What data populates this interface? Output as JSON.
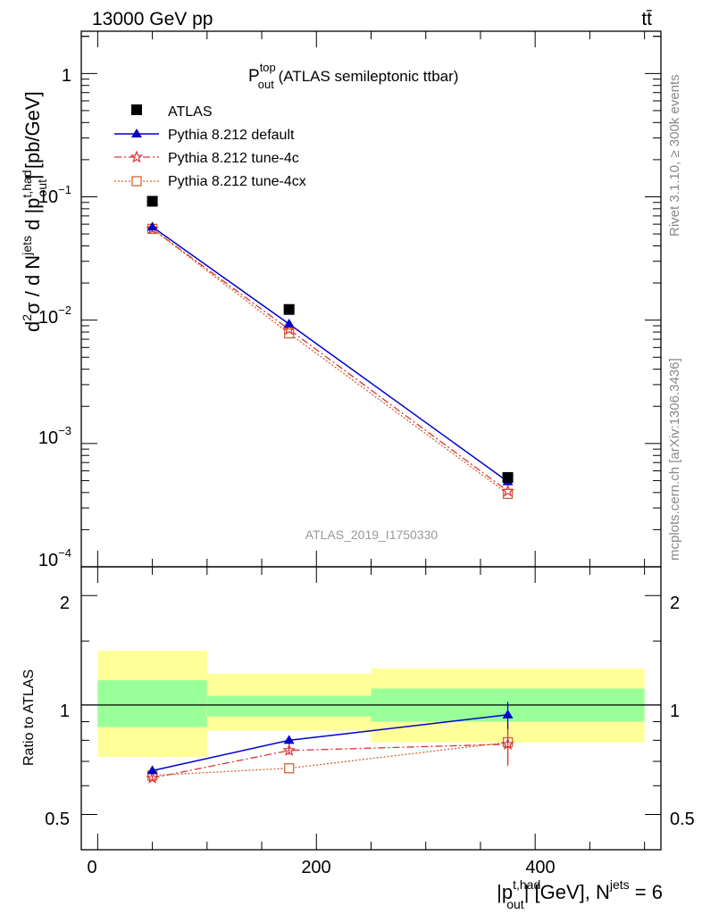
{
  "header": {
    "energy_label": "13000 GeV pp",
    "process_label": "tt̄"
  },
  "title": {
    "main": "P",
    "sup": "top",
    "sub": "out",
    "suffix": " (ATLAS semileptonic ttbar)"
  },
  "watermark": "ATLAS_2019_I1750330",
  "side_labels": {
    "rivet": "Rivet 3.1.10, ≥ 300k events",
    "mcplots": "mcplots.cern.ch [arXiv:1306.3436]"
  },
  "legend": [
    {
      "label": "ATLAS",
      "color": "#000000",
      "marker": "square-filled"
    },
    {
      "label": "Pythia 8.212 default",
      "color": "#0000cc",
      "marker": "triangle"
    },
    {
      "label": "Pythia 8.212 tune-4c",
      "color": "#dd3333",
      "marker": "star"
    },
    {
      "label": "Pythia 8.212 tune-4cx",
      "color": "#cc6633",
      "marker": "square-open"
    }
  ],
  "axis_labels": {
    "y_main": {
      "t1": "d",
      "t1sup": "2",
      "t2": "σ / d N",
      "t2sup": "jets",
      "t3": " d |p",
      "t3sup": "t,had",
      "t3sub": "out",
      "t4": "| [pb/GeV]"
    },
    "y_ratio": "Ratio to ATLAS",
    "x": {
      "t1": "|p",
      "t1sup": "t,had",
      "t1sub": "out",
      "t2": "| [GeV], N",
      "t2sup": "jets",
      "t3": " = 6"
    }
  },
  "tick_labels": {
    "main_y": [
      {
        "base": "1",
        "exp": ""
      },
      {
        "base": "10",
        "exp": "−1"
      },
      {
        "base": "10",
        "exp": "−2"
      },
      {
        "base": "10",
        "exp": "−3"
      },
      {
        "base": "10",
        "exp": "−4"
      }
    ],
    "ratio_y": [
      "2",
      "1",
      "0.5"
    ],
    "x": [
      "0",
      "200",
      "400"
    ]
  },
  "chart_data": {
    "type": "line",
    "main": {
      "yscale": "log",
      "ylim": [
        0.0001,
        2.2
      ],
      "xlim": [
        -15,
        515
      ],
      "x": [
        50,
        175,
        375
      ],
      "series": [
        {
          "name": "ATLAS",
          "values": [
            0.092,
            0.0122,
            0.00053
          ]
        },
        {
          "name": "Pythia 8.212 default",
          "values": [
            0.057,
            0.0093,
            0.00049
          ]
        },
        {
          "name": "Pythia 8.212 tune-4c",
          "values": [
            0.055,
            0.0084,
            0.00041
          ]
        },
        {
          "name": "Pythia 8.212 tune-4cx",
          "values": [
            0.055,
            0.0078,
            0.00039
          ]
        }
      ]
    },
    "ratio": {
      "yscale": "log",
      "ylim": [
        0.4,
        2.4
      ],
      "x": [
        50,
        175,
        375
      ],
      "series": [
        {
          "name": "Pythia 8.212 default",
          "values": [
            0.66,
            0.8,
            0.94
          ],
          "errors": [
            0.01,
            0.02,
            0.08
          ]
        },
        {
          "name": "Pythia 8.212 tune-4c",
          "values": [
            0.63,
            0.75,
            0.78
          ],
          "errors": [
            0.01,
            0.02,
            0.1
          ]
        },
        {
          "name": "Pythia 8.212 tune-4cx",
          "values": [
            0.64,
            0.67,
            0.79
          ],
          "errors": [
            0.01,
            0.02,
            0.1
          ]
        }
      ],
      "bands": [
        {
          "x_range": [
            0,
            100
          ],
          "stat_lo": 0.87,
          "stat_hi": 1.17,
          "tot_lo": 0.72,
          "tot_hi": 1.41
        },
        {
          "x_range": [
            100,
            250
          ],
          "stat_lo": 0.93,
          "stat_hi": 1.06,
          "tot_lo": 0.85,
          "tot_hi": 1.22
        },
        {
          "x_range": [
            250,
            500
          ],
          "stat_lo": 0.9,
          "stat_hi": 1.11,
          "tot_lo": 0.79,
          "tot_hi": 1.26
        }
      ]
    }
  }
}
